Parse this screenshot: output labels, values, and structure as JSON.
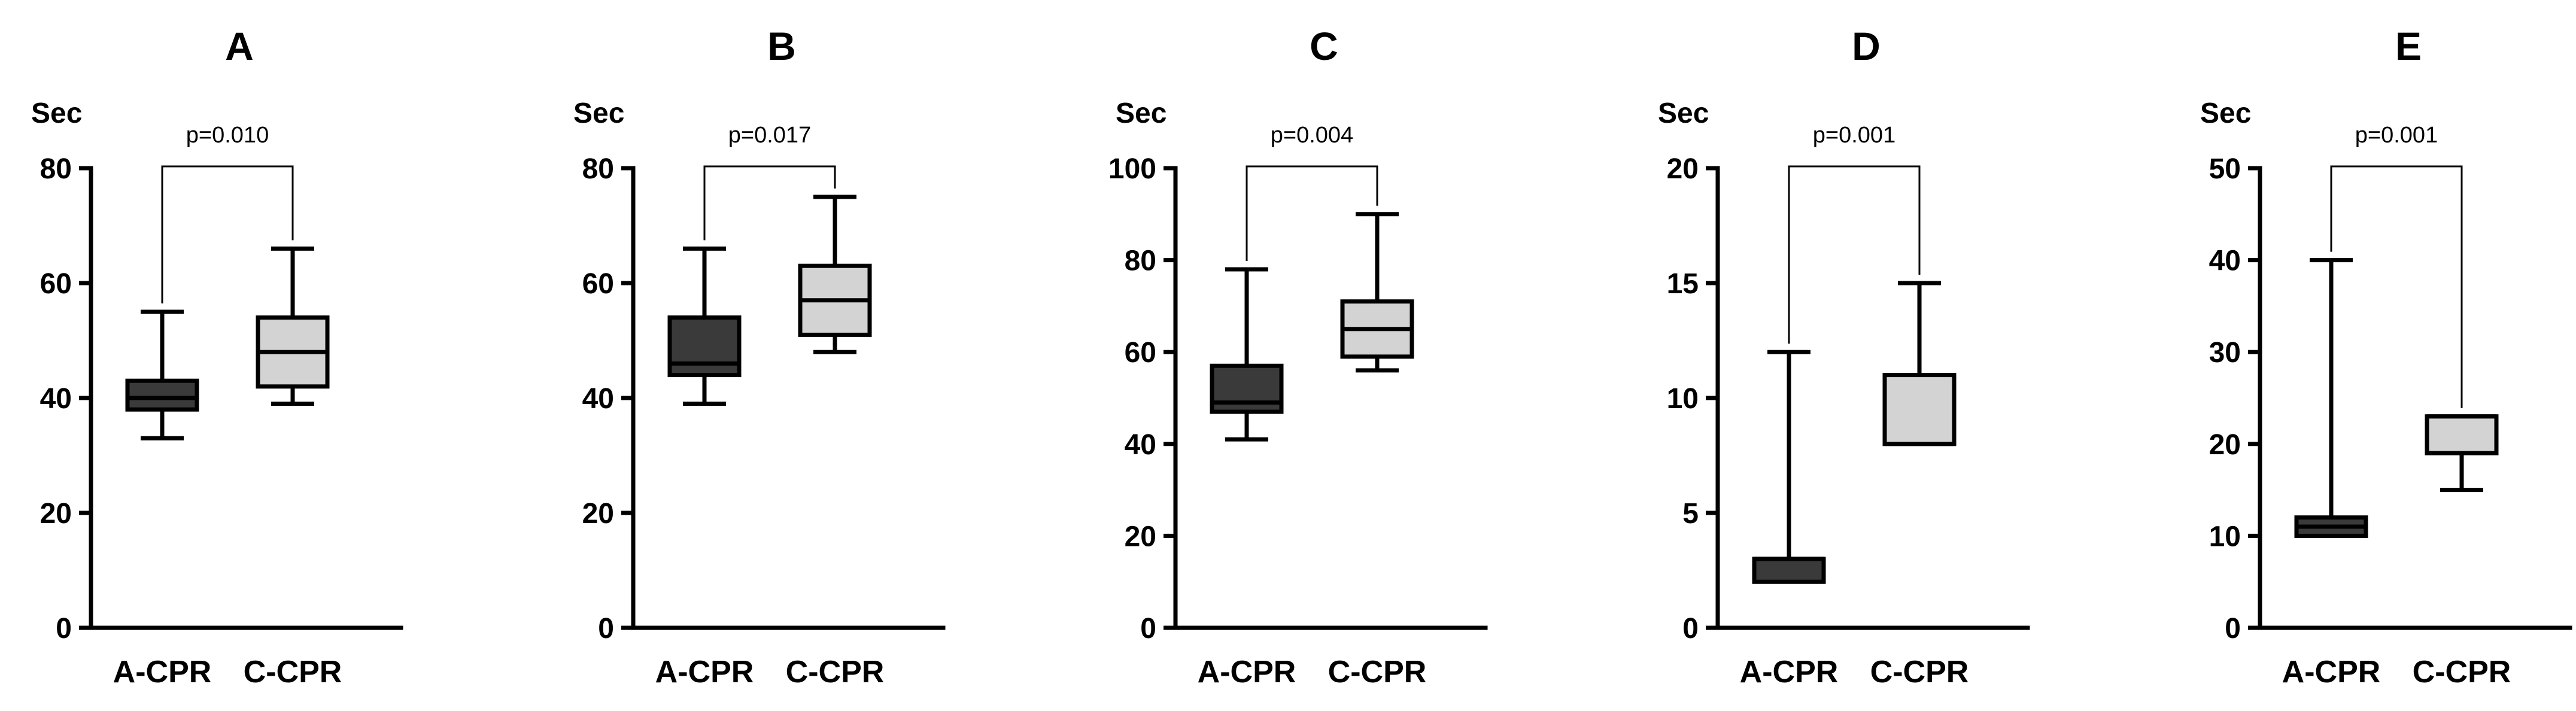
{
  "chart_data": [
    {
      "type": "box",
      "title": "A",
      "ylabel": "Sec",
      "ylim": [
        0,
        80
      ],
      "yticks": [
        0,
        20,
        40,
        60,
        80
      ],
      "categories": [
        "A-CPR",
        "C-CPR"
      ],
      "boxes": [
        {
          "category": "A-CPR",
          "min": 33,
          "q1": 38,
          "median": 40,
          "q3": 43,
          "max": 55,
          "color": "#3a3a3a"
        },
        {
          "category": "C-CPR",
          "min": 39,
          "q1": 42,
          "median": 48,
          "q3": 54,
          "max": 66,
          "color": "#d3d3d3"
        }
      ],
      "annotation": "p=0.010"
    },
    {
      "type": "box",
      "title": "B",
      "ylabel": "Sec",
      "ylim": [
        0,
        80
      ],
      "yticks": [
        0,
        20,
        40,
        60,
        80
      ],
      "categories": [
        "A-CPR",
        "C-CPR"
      ],
      "boxes": [
        {
          "category": "A-CPR",
          "min": 39,
          "q1": 44,
          "median": 46,
          "q3": 54,
          "max": 66,
          "color": "#3a3a3a"
        },
        {
          "category": "C-CPR",
          "min": 48,
          "q1": 51,
          "median": 57,
          "q3": 63,
          "max": 75,
          "color": "#d3d3d3"
        }
      ],
      "annotation": "p=0.017"
    },
    {
      "type": "box",
      "title": "C",
      "ylabel": "Sec",
      "ylim": [
        0,
        100
      ],
      "yticks": [
        0,
        20,
        40,
        60,
        80,
        100
      ],
      "categories": [
        "A-CPR",
        "C-CPR"
      ],
      "boxes": [
        {
          "category": "A-CPR",
          "min": 41,
          "q1": 47,
          "median": 49,
          "q3": 57,
          "max": 78,
          "color": "#3a3a3a"
        },
        {
          "category": "C-CPR",
          "min": 56,
          "q1": 59,
          "median": 65,
          "q3": 71,
          "max": 90,
          "color": "#d3d3d3"
        }
      ],
      "annotation": "p=0.004"
    },
    {
      "type": "box",
      "title": "D",
      "ylabel": "Sec",
      "ylim": [
        0,
        20
      ],
      "yticks": [
        0,
        5,
        10,
        15,
        20
      ],
      "categories": [
        "A-CPR",
        "C-CPR"
      ],
      "boxes": [
        {
          "category": "A-CPR",
          "min": 2,
          "q1": 2,
          "median": 3,
          "q3": 3,
          "max": 12,
          "color": "#3a3a3a"
        },
        {
          "category": "C-CPR",
          "min": 8,
          "q1": 8,
          "median": 8,
          "q3": 11,
          "max": 15,
          "color": "#d3d3d3"
        }
      ],
      "annotation": "p=0.001"
    },
    {
      "type": "box",
      "title": "E",
      "ylabel": "Sec",
      "ylim": [
        0,
        50
      ],
      "yticks": [
        0,
        10,
        20,
        30,
        40,
        50
      ],
      "categories": [
        "A-CPR",
        "C-CPR"
      ],
      "boxes": [
        {
          "category": "A-CPR",
          "min": 10,
          "q1": 10,
          "median": 11,
          "q3": 12,
          "max": 40,
          "color": "#3a3a3a"
        },
        {
          "category": "C-CPR",
          "min": 15,
          "q1": 19,
          "median": 23,
          "q3": 23,
          "max": 23,
          "color": "#d3d3d3"
        }
      ],
      "annotation": "p=0.001"
    }
  ]
}
